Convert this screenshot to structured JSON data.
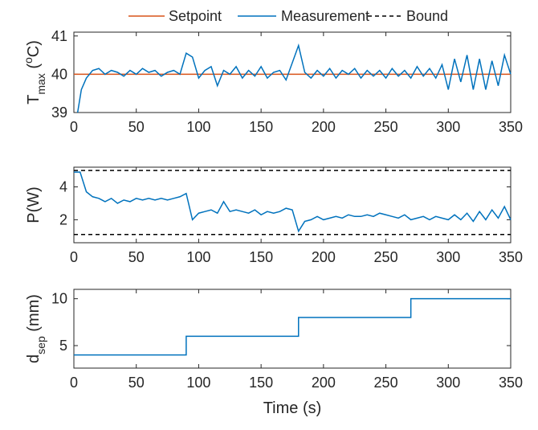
{
  "chart_data": [
    {
      "type": "line",
      "ylabel": [
        "T",
        "max",
        " (",
        "o",
        "C)"
      ],
      "xlim": [
        0,
        350
      ],
      "xticks": [
        0,
        50,
        100,
        150,
        200,
        250,
        300,
        350
      ],
      "ylim": [
        39,
        41.1
      ],
      "yticks": [
        39,
        40,
        41
      ],
      "series": [
        {
          "name": "Setpoint",
          "color": "#d95319",
          "x": [
            0,
            350
          ],
          "values": [
            40,
            40
          ]
        },
        {
          "name": "Measurement",
          "color": "#0072bd",
          "x": [
            3,
            6,
            10,
            15,
            20,
            25,
            30,
            35,
            40,
            45,
            50,
            55,
            60,
            65,
            70,
            75,
            80,
            85,
            90,
            95,
            100,
            105,
            110,
            115,
            120,
            125,
            130,
            135,
            140,
            145,
            150,
            155,
            160,
            165,
            170,
            175,
            180,
            185,
            190,
            195,
            200,
            205,
            210,
            215,
            220,
            225,
            230,
            235,
            240,
            245,
            250,
            255,
            260,
            265,
            270,
            275,
            280,
            285,
            290,
            295,
            300,
            305,
            310,
            315,
            320,
            325,
            330,
            335,
            340,
            345,
            350
          ],
          "values": [
            39.0,
            39.6,
            39.9,
            40.1,
            40.15,
            40.0,
            40.1,
            40.05,
            39.95,
            40.1,
            40.0,
            40.15,
            40.05,
            40.1,
            39.95,
            40.05,
            40.1,
            40.0,
            40.55,
            40.45,
            39.9,
            40.1,
            40.2,
            39.7,
            40.1,
            40.0,
            40.2,
            39.9,
            40.1,
            39.95,
            40.2,
            39.9,
            40.05,
            40.1,
            39.85,
            40.3,
            40.75,
            40.05,
            39.9,
            40.1,
            39.95,
            40.15,
            39.9,
            40.1,
            40.0,
            40.15,
            39.9,
            40.1,
            39.95,
            40.1,
            39.9,
            40.15,
            39.95,
            40.1,
            39.9,
            40.2,
            39.95,
            40.15,
            39.9,
            40.25,
            39.6,
            40.4,
            39.8,
            40.5,
            39.6,
            40.4,
            39.6,
            40.35,
            39.7,
            40.5,
            40.0
          ]
        }
      ]
    },
    {
      "type": "line",
      "ylabel": "P(W)",
      "xlim": [
        0,
        350
      ],
      "xticks": [
        0,
        50,
        100,
        150,
        200,
        250,
        300,
        350
      ],
      "ylim": [
        0.6,
        5.2
      ],
      "yticks": [
        2,
        4
      ],
      "series": [
        {
          "name": "Bound",
          "color": "#000000",
          "dash": true,
          "x": [
            0,
            350
          ],
          "values": [
            5,
            5
          ]
        },
        {
          "color": "#000000",
          "dash": true,
          "x": [
            0,
            350
          ],
          "values": [
            1.1,
            1.1
          ]
        },
        {
          "color": "#0072bd",
          "x": [
            0,
            5,
            10,
            15,
            20,
            25,
            30,
            35,
            40,
            45,
            50,
            55,
            60,
            65,
            70,
            75,
            80,
            85,
            90,
            95,
            100,
            105,
            110,
            115,
            120,
            125,
            130,
            135,
            140,
            145,
            150,
            155,
            160,
            165,
            170,
            175,
            180,
            185,
            190,
            195,
            200,
            205,
            210,
            215,
            220,
            225,
            230,
            235,
            240,
            245,
            250,
            255,
            260,
            265,
            270,
            275,
            280,
            285,
            290,
            295,
            300,
            305,
            310,
            315,
            320,
            325,
            330,
            335,
            340,
            345,
            350
          ],
          "values": [
            4.9,
            4.9,
            3.7,
            3.4,
            3.3,
            3.1,
            3.3,
            3.0,
            3.2,
            3.1,
            3.3,
            3.2,
            3.3,
            3.2,
            3.3,
            3.2,
            3.3,
            3.4,
            3.6,
            2.0,
            2.4,
            2.5,
            2.6,
            2.4,
            3.1,
            2.5,
            2.6,
            2.5,
            2.4,
            2.6,
            2.3,
            2.5,
            2.4,
            2.5,
            2.7,
            2.6,
            1.3,
            1.9,
            2.0,
            2.2,
            2.0,
            2.1,
            2.2,
            2.1,
            2.3,
            2.2,
            2.2,
            2.3,
            2.2,
            2.4,
            2.3,
            2.2,
            2.1,
            2.3,
            2.0,
            2.1,
            2.2,
            2.0,
            2.2,
            2.1,
            2.0,
            2.3,
            2.0,
            2.4,
            1.9,
            2.5,
            2.0,
            2.6,
            2.1,
            2.8,
            2.0
          ]
        }
      ]
    },
    {
      "type": "line",
      "ylabel": [
        "d",
        "sep",
        " (mm)"
      ],
      "xlabel": "Time (s)",
      "xlim": [
        0,
        350
      ],
      "xticks": [
        0,
        50,
        100,
        150,
        200,
        250,
        300,
        350
      ],
      "ylim": [
        2.6,
        11
      ],
      "yticks": [
        5,
        10
      ],
      "series": [
        {
          "color": "#0072bd",
          "x": [
            0,
            90,
            90,
            180,
            180,
            270,
            270,
            350
          ],
          "values": [
            4,
            4,
            6,
            6,
            8,
            8,
            10,
            10
          ]
        }
      ]
    }
  ]
}
